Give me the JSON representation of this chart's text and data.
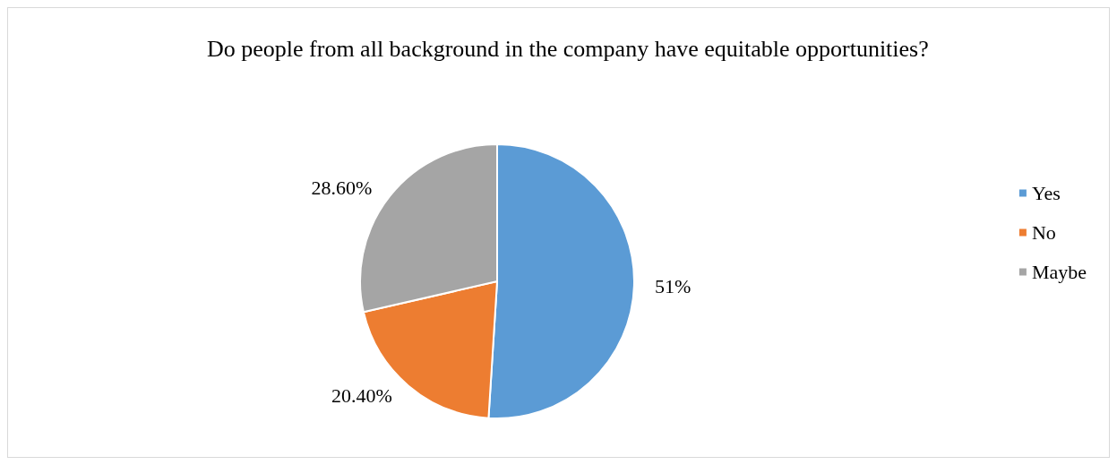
{
  "chart_data": {
    "type": "pie",
    "title": "Do people from all background in the company have equitable opportunities?",
    "categories": [
      "Yes",
      "No",
      "Maybe"
    ],
    "values": [
      51,
      20.4,
      28.6
    ],
    "value_labels": [
      "51%",
      "20.40%",
      "28.60%"
    ],
    "colors": [
      "#5b9bd5",
      "#ed7d31",
      "#a5a5a5"
    ],
    "legend": "right"
  }
}
